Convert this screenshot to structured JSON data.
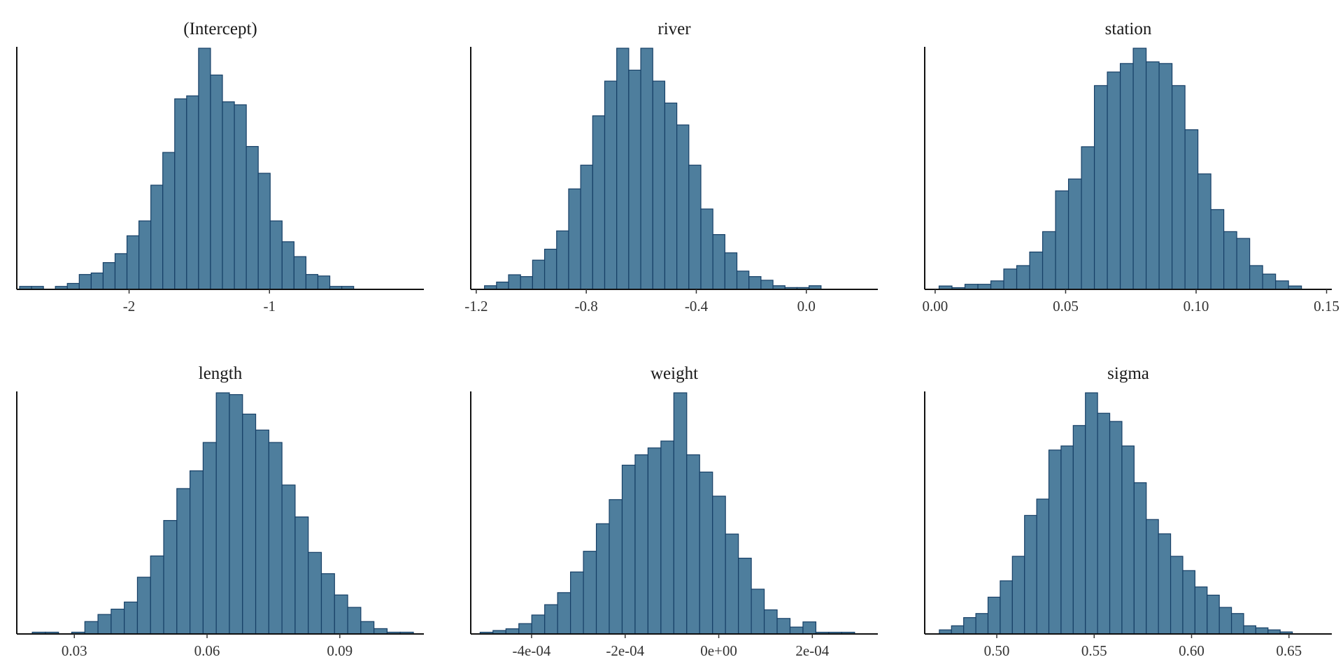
{
  "chart_data": [
    {
      "type": "bar",
      "title": "(Intercept)",
      "xlim": [
        -2.8,
        0.1
      ],
      "xticks": [
        -2,
        -1
      ],
      "xtick_labels": [
        "-2",
        "-1"
      ],
      "bins_start": -2.78,
      "bin_width": 0.085,
      "values": [
        1,
        1,
        0,
        1,
        2,
        5,
        5.5,
        9,
        12,
        18,
        23,
        35,
        46,
        64,
        65,
        81,
        72,
        63,
        62,
        48,
        39,
        23,
        16,
        11,
        5,
        4.5,
        1,
        1
      ]
    },
    {
      "type": "bar",
      "title": "river",
      "xlim": [
        -1.22,
        0.26
      ],
      "xticks": [
        -1.2,
        -0.8,
        -0.4,
        0.0
      ],
      "xtick_labels": [
        "-1.2",
        "-0.8",
        "-0.4",
        "0.0"
      ],
      "bins_start": -1.17,
      "bin_width": 0.0437,
      "values": [
        1,
        2,
        4,
        3.5,
        8,
        11,
        16,
        27.5,
        34,
        47.5,
        57,
        66,
        60,
        66,
        57,
        51,
        45,
        34,
        22,
        15,
        10,
        5,
        3.5,
        2.5,
        1,
        0.5,
        0.5,
        1
      ]
    },
    {
      "type": "bar",
      "title": "station",
      "xlim": [
        -0.004,
        0.152
      ],
      "xticks": [
        0.0,
        0.05,
        0.1,
        0.15
      ],
      "xtick_labels": [
        "0.00",
        "0.05",
        "0.10",
        "0.15"
      ],
      "bins_start": 0.0015,
      "bin_width": 0.00496,
      "values": [
        1,
        0.5,
        1.5,
        1.5,
        2.5,
        6,
        7,
        11,
        17,
        29,
        32.5,
        42,
        60,
        64,
        66.5,
        71,
        67,
        66.5,
        60,
        47,
        34,
        23.5,
        17,
        15,
        7,
        4.5,
        2.5,
        1
      ]
    },
    {
      "type": "bar",
      "title": "length",
      "xlim": [
        0.017,
        0.109
      ],
      "xticks": [
        0.03,
        0.06,
        0.09
      ],
      "xtick_labels": [
        "0.03",
        "0.06",
        "0.09"
      ],
      "bins_start": 0.0205,
      "bin_width": 0.00297,
      "values": [
        0.5,
        0.5,
        0,
        0.5,
        3.5,
        5.5,
        7,
        9,
        16,
        22,
        32,
        41,
        46,
        54,
        68,
        67.5,
        62,
        57.5,
        54,
        42,
        33,
        23,
        17,
        11,
        7.5,
        3.5,
        1.5,
        0.5,
        0.5
      ]
    },
    {
      "type": "bar",
      "title": "weight",
      "xlim": [
        -0.00053,
        0.00034
      ],
      "xticks": [
        -0.0004,
        -0.0002,
        0,
        0.0002
      ],
      "xtick_labels": [
        "-4e-04",
        "-2e-04",
        "0e+00",
        "2e-04"
      ],
      "bins_start": -0.00051,
      "bin_width": 2.76e-05,
      "values": [
        0.5,
        1,
        1.5,
        3,
        5.5,
        8.5,
        12,
        18,
        24,
        32,
        39,
        49,
        52,
        54,
        56,
        70,
        52,
        47,
        40,
        29,
        22,
        13,
        7,
        4.5,
        2,
        3.5,
        0.5,
        0.5,
        0.5
      ]
    },
    {
      "type": "bar",
      "title": "sigma",
      "xlim": [
        0.463,
        0.672
      ],
      "xticks": [
        0.5,
        0.55,
        0.6,
        0.65
      ],
      "xtick_labels": [
        "0.50",
        "0.55",
        "0.60",
        "0.65"
      ],
      "bins_start": 0.4705,
      "bin_width": 0.00625,
      "values": [
        1,
        2,
        4,
        5,
        9,
        13,
        19,
        29,
        33,
        45,
        46,
        51,
        59,
        54,
        52,
        46,
        37,
        28,
        24.5,
        19,
        15.5,
        11.5,
        9.5,
        6.5,
        5,
        2,
        1.5,
        1,
        0.5
      ]
    }
  ]
}
